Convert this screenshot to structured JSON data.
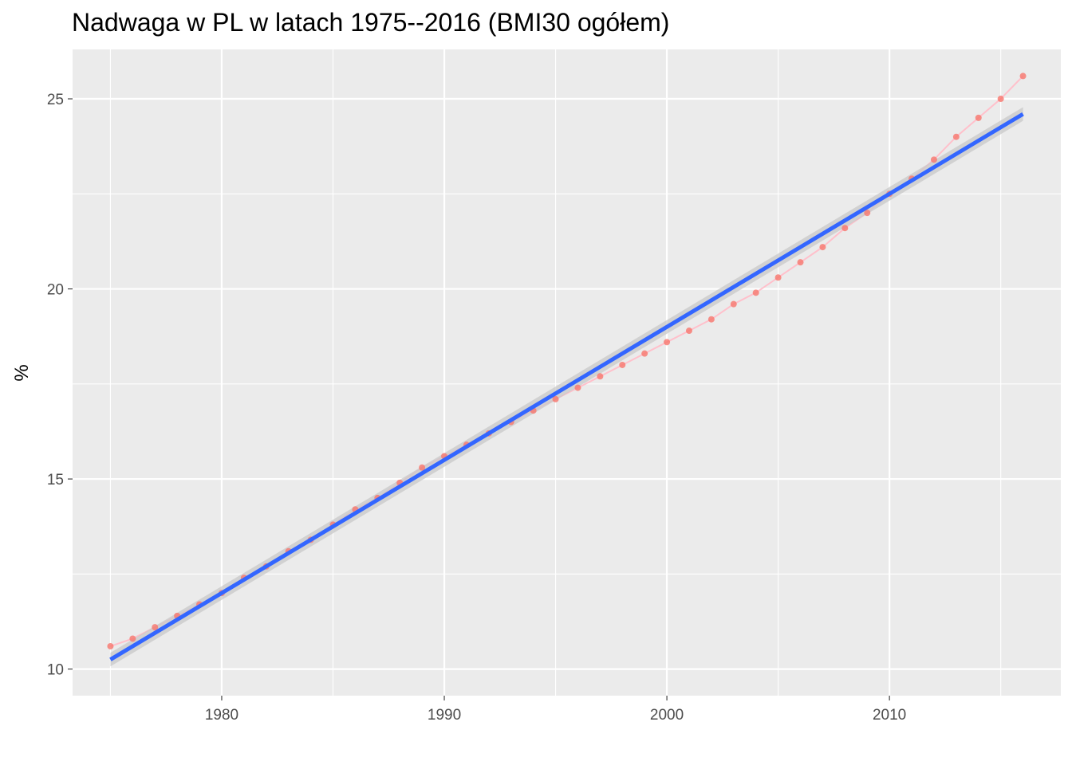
{
  "chart_data": {
    "type": "line",
    "title": "Nadwaga w PL w latach 1975--2016 (BMI30 ogółem)",
    "xlabel": "",
    "ylabel": "%",
    "xlim": [
      1973.3,
      2017.7
    ],
    "ylim": [
      9.3,
      26.3
    ],
    "x_ticks": [
      1980,
      1990,
      2000,
      2010
    ],
    "y_ticks": [
      10,
      15,
      20,
      25
    ],
    "grid": true,
    "series": [
      {
        "kind": "points_line",
        "color": "#f8766d",
        "line_color": "#ffc0cb",
        "x": [
          1975,
          1976,
          1977,
          1978,
          1979,
          1980,
          1981,
          1982,
          1983,
          1984,
          1985,
          1986,
          1987,
          1988,
          1989,
          1990,
          1991,
          1992,
          1993,
          1994,
          1995,
          1996,
          1997,
          1998,
          1999,
          2000,
          2001,
          2002,
          2003,
          2004,
          2005,
          2006,
          2007,
          2008,
          2009,
          2010,
          2011,
          2012,
          2013,
          2014,
          2015,
          2016
        ],
        "y": [
          10.6,
          10.8,
          11.1,
          11.4,
          11.7,
          12.0,
          12.4,
          12.7,
          13.1,
          13.4,
          13.8,
          14.2,
          14.5,
          14.9,
          15.3,
          15.6,
          15.9,
          16.2,
          16.5,
          16.8,
          17.1,
          17.4,
          17.7,
          18.0,
          18.3,
          18.6,
          18.9,
          19.2,
          19.6,
          19.9,
          20.3,
          20.7,
          21.1,
          21.6,
          22.0,
          22.5,
          22.9,
          23.4,
          24.0,
          24.5,
          25.0,
          25.6
        ]
      },
      {
        "kind": "linear_fit",
        "color": "#3366ff",
        "band_color": "#c8c8c8",
        "x": [
          1975,
          2016
        ],
        "y": [
          10.25,
          24.6
        ],
        "band_halfwidth": 0.18
      }
    ]
  }
}
